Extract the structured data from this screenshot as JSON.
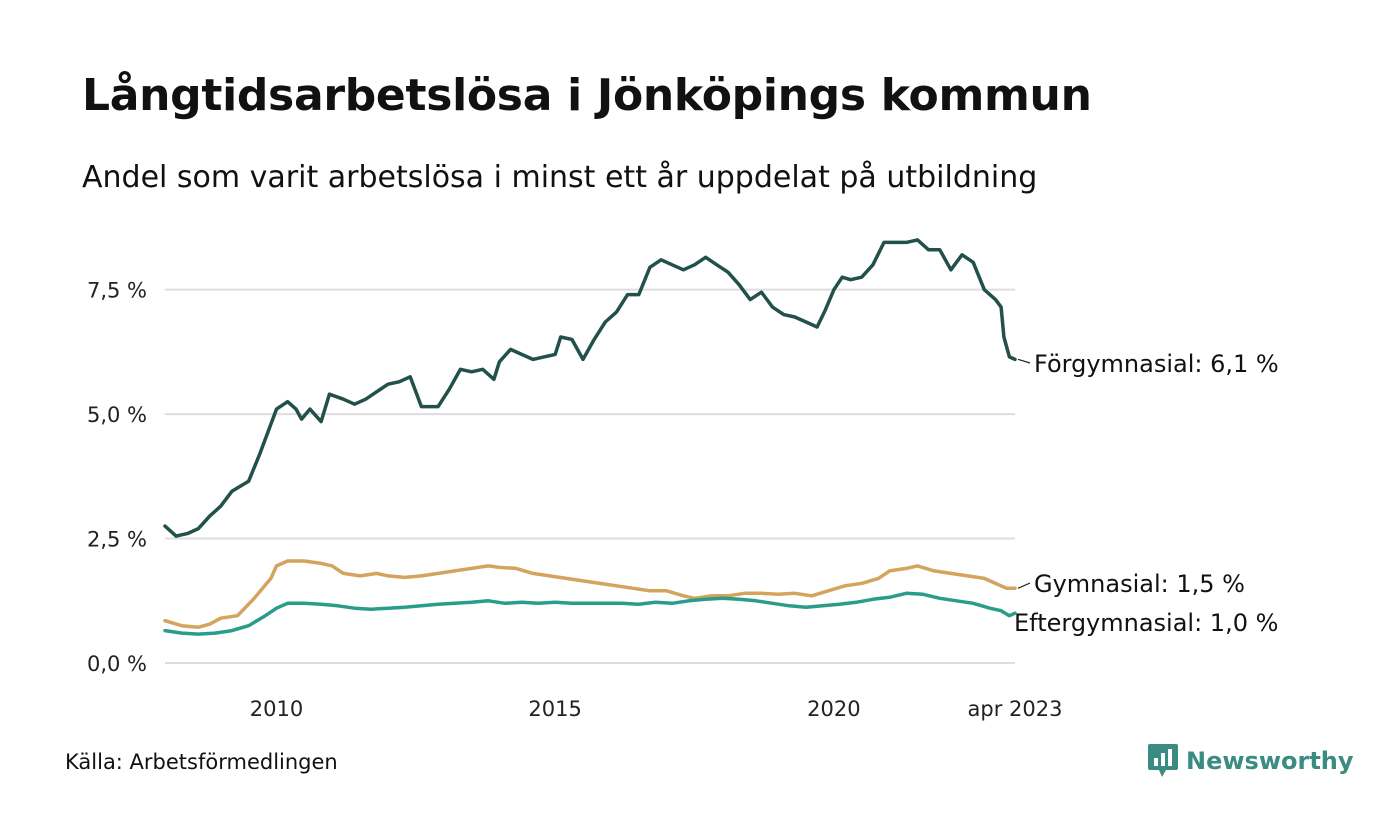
{
  "title": "Långtidsarbetslösa i Jönköpings kommun",
  "subtitle": "Andel som varit arbetslösa i minst ett år uppdelat på utbildning",
  "source": "Källa: Arbetsförmedlingen",
  "brand": {
    "name": "Newsworthy",
    "icon": "bar-chart-speech-bubble-icon",
    "color": "#3a8b82"
  },
  "chart_data": {
    "type": "line",
    "x_unit": "year (decimal)",
    "xlim": [
      2008.0,
      2023.25
    ],
    "ylim": [
      0,
      9
    ],
    "y_ticks": [
      {
        "value": 0,
        "label": "0,0 %"
      },
      {
        "value": 2.5,
        "label": "2,5 %"
      },
      {
        "value": 5.0,
        "label": "5,0 %"
      },
      {
        "value": 7.5,
        "label": "7,5 %"
      }
    ],
    "x_ticks": [
      {
        "value": 2010,
        "label": "2010"
      },
      {
        "value": 2015,
        "label": "2015"
      },
      {
        "value": 2020,
        "label": "2020"
      },
      {
        "value": 2023.25,
        "label": "apr 2023"
      }
    ],
    "grid": "horizontal",
    "series": [
      {
        "name": "Förgymnasial",
        "label": "Förgymnasial: 6,1 %",
        "color": "#22504a",
        "points": [
          [
            2008.0,
            2.75
          ],
          [
            2008.2,
            2.55
          ],
          [
            2008.4,
            2.6
          ],
          [
            2008.6,
            2.7
          ],
          [
            2008.8,
            2.95
          ],
          [
            2009.0,
            3.15
          ],
          [
            2009.2,
            3.45
          ],
          [
            2009.5,
            3.65
          ],
          [
            2009.7,
            4.2
          ],
          [
            2009.9,
            4.8
          ],
          [
            2010.0,
            5.1
          ],
          [
            2010.2,
            5.25
          ],
          [
            2010.35,
            5.1
          ],
          [
            2010.45,
            4.9
          ],
          [
            2010.6,
            5.1
          ],
          [
            2010.8,
            4.85
          ],
          [
            2010.95,
            5.4
          ],
          [
            2011.2,
            5.3
          ],
          [
            2011.4,
            5.2
          ],
          [
            2011.6,
            5.3
          ],
          [
            2011.8,
            5.45
          ],
          [
            2012.0,
            5.6
          ],
          [
            2012.2,
            5.65
          ],
          [
            2012.4,
            5.75
          ],
          [
            2012.6,
            5.15
          ],
          [
            2012.9,
            5.15
          ],
          [
            2013.1,
            5.5
          ],
          [
            2013.3,
            5.9
          ],
          [
            2013.5,
            5.85
          ],
          [
            2013.7,
            5.9
          ],
          [
            2013.9,
            5.7
          ],
          [
            2014.0,
            6.05
          ],
          [
            2014.2,
            6.3
          ],
          [
            2014.4,
            6.2
          ],
          [
            2014.6,
            6.1
          ],
          [
            2014.8,
            6.15
          ],
          [
            2015.0,
            6.2
          ],
          [
            2015.1,
            6.55
          ],
          [
            2015.3,
            6.5
          ],
          [
            2015.5,
            6.1
          ],
          [
            2015.7,
            6.5
          ],
          [
            2015.9,
            6.85
          ],
          [
            2016.1,
            7.05
          ],
          [
            2016.3,
            7.4
          ],
          [
            2016.5,
            7.4
          ],
          [
            2016.7,
            7.95
          ],
          [
            2016.9,
            8.1
          ],
          [
            2017.1,
            8.0
          ],
          [
            2017.3,
            7.9
          ],
          [
            2017.5,
            8.0
          ],
          [
            2017.7,
            8.15
          ],
          [
            2017.9,
            8.0
          ],
          [
            2018.1,
            7.85
          ],
          [
            2018.3,
            7.6
          ],
          [
            2018.5,
            7.3
          ],
          [
            2018.7,
            7.45
          ],
          [
            2018.9,
            7.15
          ],
          [
            2019.1,
            7.0
          ],
          [
            2019.3,
            6.95
          ],
          [
            2019.5,
            6.85
          ],
          [
            2019.7,
            6.75
          ],
          [
            2019.85,
            7.1
          ],
          [
            2020.0,
            7.5
          ],
          [
            2020.15,
            7.75
          ],
          [
            2020.3,
            7.7
          ],
          [
            2020.5,
            7.75
          ],
          [
            2020.7,
            8.0
          ],
          [
            2020.9,
            8.45
          ],
          [
            2021.1,
            8.45
          ],
          [
            2021.3,
            8.45
          ],
          [
            2021.5,
            8.5
          ],
          [
            2021.7,
            8.3
          ],
          [
            2021.9,
            8.3
          ],
          [
            2022.1,
            7.9
          ],
          [
            2022.3,
            8.2
          ],
          [
            2022.5,
            8.05
          ],
          [
            2022.7,
            7.5
          ],
          [
            2022.9,
            7.3
          ],
          [
            2023.0,
            7.15
          ],
          [
            2023.05,
            6.55
          ],
          [
            2023.15,
            6.15
          ],
          [
            2023.25,
            6.1
          ]
        ]
      },
      {
        "name": "Gymnasial",
        "label": "Gymnasial: 1,5 %",
        "color": "#d4a45e",
        "points": [
          [
            2008.0,
            0.85
          ],
          [
            2008.3,
            0.75
          ],
          [
            2008.6,
            0.72
          ],
          [
            2008.8,
            0.78
          ],
          [
            2009.0,
            0.9
          ],
          [
            2009.3,
            0.95
          ],
          [
            2009.6,
            1.3
          ],
          [
            2009.9,
            1.7
          ],
          [
            2010.0,
            1.95
          ],
          [
            2010.2,
            2.05
          ],
          [
            2010.5,
            2.05
          ],
          [
            2010.8,
            2.0
          ],
          [
            2011.0,
            1.95
          ],
          [
            2011.2,
            1.8
          ],
          [
            2011.5,
            1.75
          ],
          [
            2011.8,
            1.8
          ],
          [
            2012.0,
            1.75
          ],
          [
            2012.3,
            1.72
          ],
          [
            2012.6,
            1.75
          ],
          [
            2012.9,
            1.8
          ],
          [
            2013.2,
            1.85
          ],
          [
            2013.5,
            1.9
          ],
          [
            2013.8,
            1.95
          ],
          [
            2014.0,
            1.92
          ],
          [
            2014.3,
            1.9
          ],
          [
            2014.6,
            1.8
          ],
          [
            2014.9,
            1.75
          ],
          [
            2015.2,
            1.7
          ],
          [
            2015.5,
            1.65
          ],
          [
            2015.8,
            1.6
          ],
          [
            2016.1,
            1.55
          ],
          [
            2016.4,
            1.5
          ],
          [
            2016.7,
            1.45
          ],
          [
            2017.0,
            1.45
          ],
          [
            2017.3,
            1.35
          ],
          [
            2017.5,
            1.3
          ],
          [
            2017.8,
            1.35
          ],
          [
            2018.1,
            1.35
          ],
          [
            2018.4,
            1.4
          ],
          [
            2018.7,
            1.4
          ],
          [
            2019.0,
            1.38
          ],
          [
            2019.3,
            1.4
          ],
          [
            2019.6,
            1.35
          ],
          [
            2019.9,
            1.45
          ],
          [
            2020.2,
            1.55
          ],
          [
            2020.5,
            1.6
          ],
          [
            2020.8,
            1.7
          ],
          [
            2021.0,
            1.85
          ],
          [
            2021.3,
            1.9
          ],
          [
            2021.5,
            1.95
          ],
          [
            2021.8,
            1.85
          ],
          [
            2022.1,
            1.8
          ],
          [
            2022.4,
            1.75
          ],
          [
            2022.7,
            1.7
          ],
          [
            2022.9,
            1.6
          ],
          [
            2023.1,
            1.5
          ],
          [
            2023.25,
            1.5
          ]
        ]
      },
      {
        "name": "Eftergymnasial",
        "label": "Eftergymnasial: 1,0 %",
        "color": "#2a9d8a",
        "points": [
          [
            2008.0,
            0.65
          ],
          [
            2008.3,
            0.6
          ],
          [
            2008.6,
            0.58
          ],
          [
            2008.9,
            0.6
          ],
          [
            2009.2,
            0.65
          ],
          [
            2009.5,
            0.75
          ],
          [
            2009.8,
            0.95
          ],
          [
            2010.0,
            1.1
          ],
          [
            2010.2,
            1.2
          ],
          [
            2010.5,
            1.2
          ],
          [
            2010.8,
            1.18
          ],
          [
            2011.1,
            1.15
          ],
          [
            2011.4,
            1.1
          ],
          [
            2011.7,
            1.08
          ],
          [
            2012.0,
            1.1
          ],
          [
            2012.3,
            1.12
          ],
          [
            2012.6,
            1.15
          ],
          [
            2012.9,
            1.18
          ],
          [
            2013.2,
            1.2
          ],
          [
            2013.5,
            1.22
          ],
          [
            2013.8,
            1.25
          ],
          [
            2014.1,
            1.2
          ],
          [
            2014.4,
            1.22
          ],
          [
            2014.7,
            1.2
          ],
          [
            2015.0,
            1.22
          ],
          [
            2015.3,
            1.2
          ],
          [
            2015.6,
            1.2
          ],
          [
            2015.9,
            1.2
          ],
          [
            2016.2,
            1.2
          ],
          [
            2016.5,
            1.18
          ],
          [
            2016.8,
            1.22
          ],
          [
            2017.1,
            1.2
          ],
          [
            2017.4,
            1.25
          ],
          [
            2017.7,
            1.28
          ],
          [
            2018.0,
            1.3
          ],
          [
            2018.3,
            1.28
          ],
          [
            2018.6,
            1.25
          ],
          [
            2018.9,
            1.2
          ],
          [
            2019.2,
            1.15
          ],
          [
            2019.5,
            1.12
          ],
          [
            2019.8,
            1.15
          ],
          [
            2020.1,
            1.18
          ],
          [
            2020.4,
            1.22
          ],
          [
            2020.7,
            1.28
          ],
          [
            2021.0,
            1.32
          ],
          [
            2021.3,
            1.4
          ],
          [
            2021.6,
            1.38
          ],
          [
            2021.9,
            1.3
          ],
          [
            2022.2,
            1.25
          ],
          [
            2022.5,
            1.2
          ],
          [
            2022.8,
            1.1
          ],
          [
            2023.0,
            1.05
          ],
          [
            2023.15,
            0.95
          ],
          [
            2023.25,
            1.0
          ]
        ]
      }
    ]
  }
}
